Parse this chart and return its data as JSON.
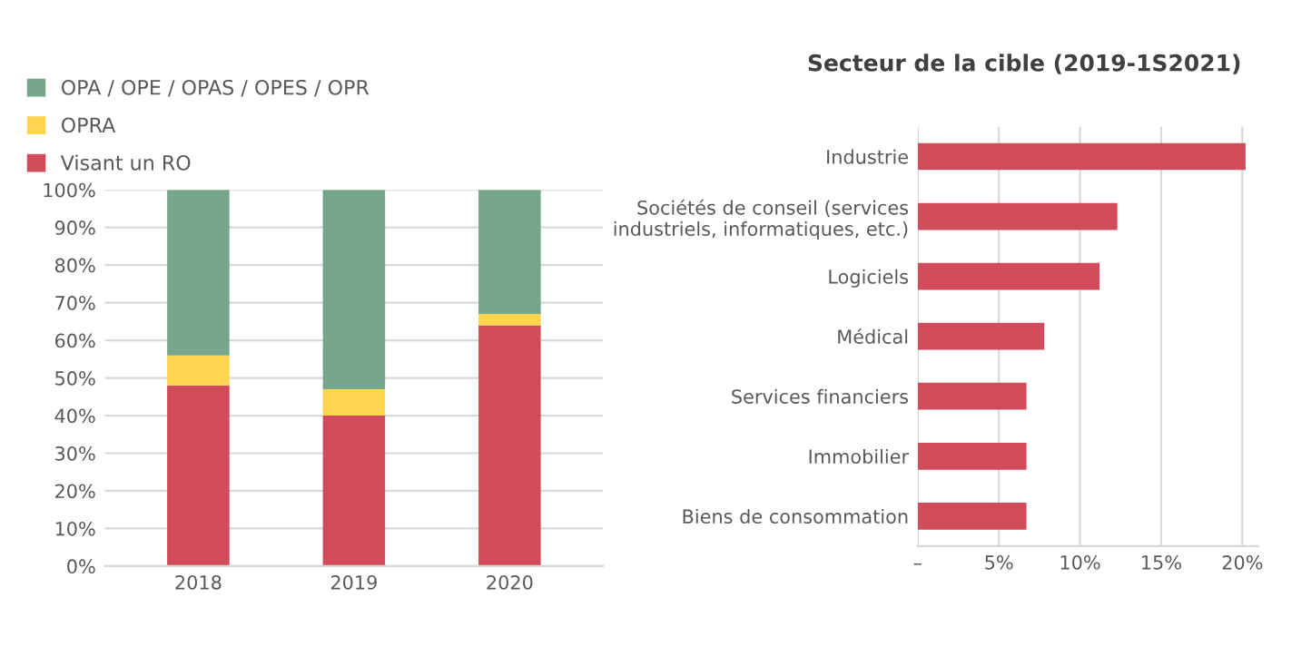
{
  "chart_data": [
    {
      "type": "bar",
      "stacked": true,
      "categories": [
        "2018",
        "2019",
        "2020"
      ],
      "series": [
        {
          "name": "Visant un RO",
          "color": "#d14b5a",
          "values": [
            48,
            40,
            64
          ]
        },
        {
          "name": "OPRA",
          "color": "#ffd44f",
          "values": [
            8,
            7,
            3
          ]
        },
        {
          "name": "OPA / OPE / OPAS / OPES / OPR",
          "color": "#76a68c",
          "values": [
            44,
            53,
            33
          ]
        }
      ],
      "ylim": [
        0,
        100
      ],
      "yticks": [
        {
          "value": 0,
          "label": "0%"
        },
        {
          "value": 10,
          "label": "10%"
        },
        {
          "value": 20,
          "label": "20%"
        },
        {
          "value": 30,
          "label": "30%"
        },
        {
          "value": 40,
          "label": "40%"
        },
        {
          "value": 50,
          "label": "50%"
        },
        {
          "value": 60,
          "label": "60%"
        },
        {
          "value": 70,
          "label": "70%"
        },
        {
          "value": 80,
          "label": "80%"
        },
        {
          "value": 90,
          "label": "90%"
        },
        {
          "value": 100,
          "label": "100%"
        }
      ],
      "grid": "y",
      "legend": "top"
    },
    {
      "type": "bar",
      "orientation": "horizontal",
      "title": "Secteur de la cible (2019-1S2021)",
      "categories": [
        "Industrie",
        "Sociétés de conseil (services\nindustriels, informatiques, etc.)",
        "Logiciels",
        "Médical",
        "Services financiers",
        "Immobilier",
        "Biens de consommation"
      ],
      "values": [
        20.2,
        12.3,
        11.2,
        7.8,
        6.7,
        6.7,
        6.7
      ],
      "color": "#d14b5a",
      "xlim": [
        0,
        21
      ],
      "xticks": [
        {
          "value": 0,
          "label": "–"
        },
        {
          "value": 5,
          "label": "5%"
        },
        {
          "value": 10,
          "label": "10%"
        },
        {
          "value": 15,
          "label": "15%"
        },
        {
          "value": 20,
          "label": "20%"
        }
      ],
      "grid": "x"
    }
  ]
}
